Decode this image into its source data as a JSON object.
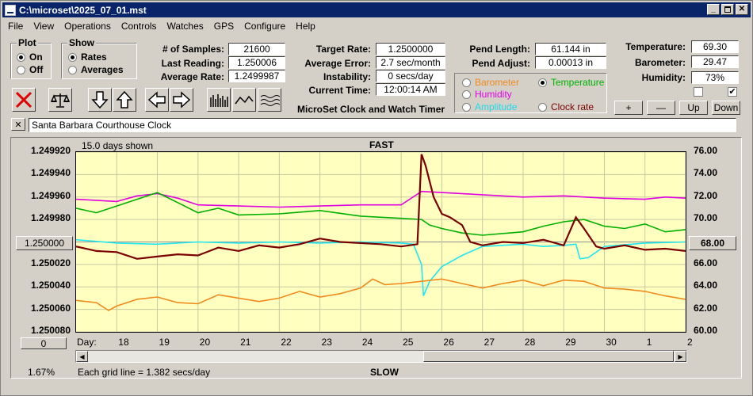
{
  "window": {
    "title": "C:\\microset\\2025_07_01.mst"
  },
  "menu": [
    "File",
    "View",
    "Operations",
    "Controls",
    "Watches",
    "GPS",
    "Configure",
    "Help"
  ],
  "plot_group": {
    "title": "Plot",
    "on": "On",
    "off": "Off",
    "selected": "On"
  },
  "show_group": {
    "title": "Show",
    "rates": "Rates",
    "averages": "Averages",
    "selected": "Rates"
  },
  "stats": {
    "samples_label": "# of Samples:",
    "samples": "21600",
    "last_label": "Last Reading:",
    "last": "1.250006",
    "avg_label": "Average Rate:",
    "avg": "1.2499987"
  },
  "targets": {
    "target_label": "Target Rate:",
    "target": "1.2500000",
    "error_label": "Average Error:",
    "error": "2.7 sec/month",
    "instab_label": "Instability:",
    "instab": "0 secs/day",
    "time_label": "Current Time:",
    "time": "12:00:14 AM",
    "subtitle": "MicroSet Clock and Watch Timer"
  },
  "pend": {
    "length_label": "Pend Length:",
    "length": "61.144 in",
    "adjust_label": "Pend Adjust:",
    "adjust": "0.00013 in"
  },
  "aux_options": {
    "barometer": "Barometer",
    "temperature": "Temperature",
    "humidity": "Humidity",
    "amplitude": "Amplitude",
    "clock_rate": "Clock rate",
    "selected": "Temperature"
  },
  "env": {
    "temp_label": "Temperature:",
    "temp": "69.30",
    "baro_label": "Barometer:",
    "baro": "29.47",
    "hum_label": "Humidity:",
    "hum": "73%"
  },
  "step_buttons": {
    "plus": "+",
    "minus": "—",
    "up": "Up",
    "down": "Down"
  },
  "description": "Santa Barbara Courthouse Clock",
  "chart_info": {
    "days_shown": "15.0 days shown",
    "top": "FAST",
    "bottom": "SLOW",
    "day_label": "Day:",
    "grid_info": "Each grid line = 1.382 secs/day",
    "left_value_button": "1.250000",
    "right_value_button": "68.00",
    "zero_button": "0",
    "percent": "1.67%"
  },
  "colors": {
    "rate": "#7a0000",
    "temperature": "#00b000",
    "humidity": "#e000e0",
    "amplitude": "#20e8f0",
    "barometer": "#f08a1c",
    "plot_bg": "#ffffc0"
  },
  "chart_data": {
    "type": "line",
    "left_ticks": [
      "1.249920",
      "1.249940",
      "1.249960",
      "1.249980",
      "1.250000",
      "1.250020",
      "1.250040",
      "1.250060",
      "1.250080"
    ],
    "right_ticks": [
      "76.00",
      "74.00",
      "72.00",
      "70.00",
      "68.00",
      "66.00",
      "64.00",
      "62.00",
      "60.00"
    ],
    "ylim_left": [
      1.24992,
      1.25008
    ],
    "ylim_right": [
      60,
      76
    ],
    "xlim": [
      17,
      32
    ],
    "x_ticks": [
      "18",
      "19",
      "20",
      "21",
      "22",
      "23",
      "24",
      "25",
      "26",
      "27",
      "28",
      "29",
      "30",
      "1",
      "2"
    ],
    "x_tick_positions": [
      18,
      19,
      20,
      21,
      22,
      23,
      24,
      25,
      26,
      27,
      28,
      29,
      30,
      31,
      32
    ],
    "series": [
      {
        "key": "humidity",
        "axis": "right",
        "x": [
          17,
          18,
          18.5,
          19,
          19.5,
          20,
          21,
          22,
          23,
          24,
          25,
          25.5,
          26,
          27,
          28,
          29,
          30,
          31,
          31.5,
          32
        ],
        "y": [
          71.8,
          71.6,
          72.1,
          72.3,
          71.9,
          71.3,
          71.2,
          71.1,
          71.2,
          71.3,
          71.3,
          72.5,
          72.4,
          72.2,
          72.0,
          72.1,
          71.9,
          71.8,
          72.0,
          71.9
        ]
      },
      {
        "key": "temperature",
        "axis": "right",
        "x": [
          17,
          17.5,
          18,
          18.5,
          19,
          19.5,
          20,
          20.5,
          21,
          22,
          23,
          24,
          25,
          25.5,
          25.7,
          26,
          26.5,
          27,
          28,
          28.5,
          29,
          29.5,
          30,
          30.5,
          31,
          31.5,
          32
        ],
        "y": [
          71.0,
          70.6,
          71.2,
          71.8,
          72.4,
          71.5,
          70.6,
          71.0,
          70.4,
          70.5,
          70.8,
          70.3,
          70.1,
          70.0,
          69.5,
          69.2,
          68.8,
          68.6,
          68.9,
          69.4,
          69.8,
          70.0,
          69.4,
          69.2,
          69.6,
          68.9,
          69.1
        ]
      },
      {
        "key": "amplitude",
        "axis": "right",
        "x": [
          17,
          18,
          19,
          20,
          21,
          22,
          23,
          24,
          25,
          25.3,
          25.5,
          25.55,
          25.7,
          26,
          26.5,
          27,
          28,
          28.5,
          29,
          29.3,
          29.4,
          29.6,
          30,
          31,
          32
        ],
        "y": [
          68.2,
          67.9,
          67.8,
          68.0,
          67.9,
          68.0,
          67.9,
          68.0,
          67.9,
          67.8,
          66.0,
          63.2,
          64.5,
          65.8,
          66.8,
          67.6,
          67.8,
          67.6,
          67.7,
          67.8,
          66.5,
          66.6,
          67.6,
          67.9,
          68.0
        ]
      },
      {
        "key": "barometer",
        "axis": "right",
        "x": [
          17,
          17.5,
          17.8,
          18,
          18.5,
          19,
          19.5,
          20,
          20.5,
          21,
          21.5,
          22,
          22.5,
          23,
          23.5,
          24,
          24.3,
          24.6,
          25,
          25.5,
          26,
          26.5,
          27,
          27.5,
          28,
          28.5,
          29,
          29.5,
          30,
          30.5,
          31,
          31.5,
          32
        ],
        "y": [
          62.8,
          62.6,
          61.9,
          62.3,
          62.9,
          63.1,
          62.6,
          62.5,
          63.3,
          63.0,
          62.7,
          63.0,
          63.6,
          63.1,
          63.4,
          63.9,
          64.7,
          64.2,
          64.3,
          64.5,
          64.7,
          64.3,
          63.9,
          64.3,
          64.6,
          64.1,
          64.6,
          64.5,
          63.9,
          63.8,
          63.6,
          63.2,
          62.9
        ]
      },
      {
        "key": "rate",
        "axis": "left",
        "x": [
          17,
          17.5,
          18,
          18.5,
          19,
          19.5,
          20,
          20.5,
          21,
          21.5,
          22,
          22.5,
          23,
          23.5,
          24,
          24.5,
          25,
          25.4,
          25.5,
          25.6,
          25.8,
          26,
          26.2,
          26.5,
          26.7,
          27,
          27.5,
          28,
          28.5,
          29,
          29.3,
          29.5,
          29.8,
          30,
          30.5,
          31,
          31.5,
          32
        ],
        "y": [
          1.250004,
          1.250008,
          1.250009,
          1.250015,
          1.250013,
          1.250011,
          1.250012,
          1.250005,
          1.250008,
          1.250003,
          1.250005,
          1.250002,
          1.249997,
          1.25,
          1.250001,
          1.250002,
          1.250004,
          1.250002,
          1.249922,
          1.249932,
          1.24996,
          1.249975,
          1.249978,
          1.249985,
          1.25,
          1.250003,
          1.25,
          1.250001,
          1.249998,
          1.250003,
          1.249978,
          1.249988,
          1.250004,
          1.250006,
          1.250003,
          1.250007,
          1.250006,
          1.250008
        ]
      }
    ]
  }
}
